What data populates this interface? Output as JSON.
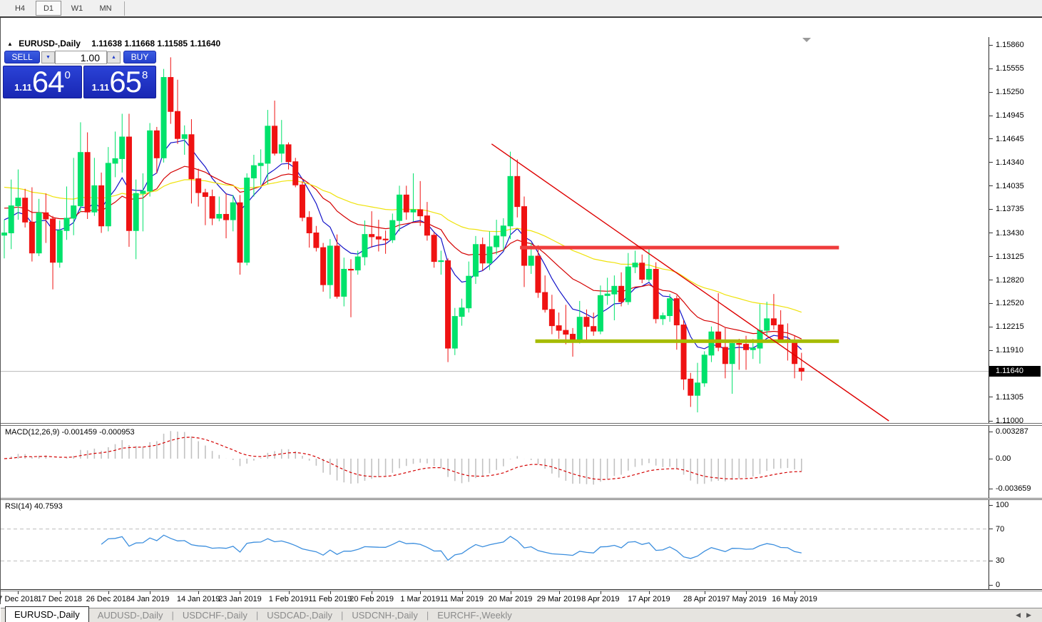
{
  "toolbar": {
    "timeframes": [
      {
        "label": "H4",
        "active": false
      },
      {
        "label": "D1",
        "active": true
      },
      {
        "label": "W1",
        "active": false
      },
      {
        "label": "MN",
        "active": false
      }
    ]
  },
  "header": {
    "symbol": "EURUSD-,Daily",
    "quote": "1.11638 1.11668 1.11585 1.11640"
  },
  "trade": {
    "sell_label": "SELL",
    "buy_label": "BUY",
    "volume": "1.00",
    "sell_price": {
      "prefix": "1.11",
      "big": "64",
      "sup": "0"
    },
    "buy_price": {
      "prefix": "1.11",
      "big": "65",
      "sup": "8"
    }
  },
  "price_scale": {
    "ticks": [
      "1.15860",
      "1.15555",
      "1.15250",
      "1.14945",
      "1.14645",
      "1.14340",
      "1.14035",
      "1.13735",
      "1.13430",
      "1.13125",
      "1.12820",
      "1.12520",
      "1.12215",
      "1.11910",
      "1.11305",
      "1.11000"
    ],
    "current_label": "1.11640",
    "current_value": 1.1164
  },
  "macd": {
    "name": "MACD(12,26,9)",
    "values": "-0.001459 -0.000953",
    "fast": 12,
    "slow": 26,
    "signal": 9,
    "histogram_color": "#C2C2C2",
    "signal_color": "#D40000",
    "scale": [
      {
        "label": "0.003287",
        "value": 0.003287
      },
      {
        "label": "0.00",
        "value": 0
      },
      {
        "label": "-0.003659",
        "value": -0.003659
      }
    ]
  },
  "rsi": {
    "name": "RSI(14)",
    "value": "40.7593",
    "period": 14,
    "line_color": "#3B8EDE",
    "levels": [
      70,
      30
    ],
    "scale": [
      {
        "label": "100",
        "value": 100
      },
      {
        "label": "70",
        "value": 70
      },
      {
        "label": "30",
        "value": 30
      },
      {
        "label": "0",
        "value": 0
      }
    ]
  },
  "tabs": {
    "items": [
      {
        "label": "EURUSD-,Daily",
        "active": true
      },
      {
        "label": "AUDUSD-,Daily",
        "active": false
      },
      {
        "label": "USDCHF-,Daily",
        "active": false
      },
      {
        "label": "USDCAD-,Daily",
        "active": false
      },
      {
        "label": "USDCNH-,Daily",
        "active": false
      },
      {
        "label": "EURCHF-,Weekly",
        "active": false
      }
    ],
    "scroll_left_icon": "◀",
    "scroll_right_icon": "▶"
  },
  "chart_data": {
    "type": "candlestick",
    "symbol": "EURUSD",
    "timeframe": "Daily",
    "up_color": "#00E26B",
    "down_color": "#EF1212",
    "current_price_line_color": "#B8B8B8",
    "y_axis": {
      "min": 1.1098,
      "max": 1.1594
    },
    "x_axis_labels": [
      {
        "label": "7 Dec 2018",
        "index": 2
      },
      {
        "label": "17 Dec 2018",
        "index": 8
      },
      {
        "label": "26 Dec 2018",
        "index": 15
      },
      {
        "label": "4 Jan 2019",
        "index": 21
      },
      {
        "label": "14 Jan 2019",
        "index": 28
      },
      {
        "label": "23 Jan 2019",
        "index": 34
      },
      {
        "label": "1 Feb 2019",
        "index": 41
      },
      {
        "label": "11 Feb 2019",
        "index": 47
      },
      {
        "label": "20 Feb 2019",
        "index": 53
      },
      {
        "label": "1 Mar 2019",
        "index": 60
      },
      {
        "label": "11 Mar 2019",
        "index": 66
      },
      {
        "label": "20 Mar 2019",
        "index": 73
      },
      {
        "label": "29 Mar 2019",
        "index": 80
      },
      {
        "label": "8 Apr 2019",
        "index": 86
      },
      {
        "label": "17 Apr 2019",
        "index": 93
      },
      {
        "label": "28 Apr 2019",
        "index": 101
      },
      {
        "label": "7 May 2019",
        "index": 107
      },
      {
        "label": "16 May 2019",
        "index": 114
      }
    ],
    "moving_averages": [
      {
        "name": "fast",
        "period": 8,
        "seed": 1.136,
        "color": "#1212C8"
      },
      {
        "name": "medium",
        "period": 21,
        "seed": 1.1375,
        "color": "#D40000"
      },
      {
        "name": "slow",
        "period": 50,
        "seed": 1.1402,
        "color": "#EFE20A"
      }
    ],
    "overlays": {
      "trendline": {
        "color": "#DE0000",
        "from_index": 70.3,
        "from_price": 1.1458,
        "to_index": 127.6,
        "to_price": 1.11
      },
      "resistance_band": {
        "color": "#EF3C3C",
        "price": 1.1324,
        "from_index": 74.4,
        "to_index": 120.4,
        "thickness": 5
      },
      "support_band": {
        "color": "#A6BC00",
        "price": 1.1203,
        "from_index": 76.6,
        "to_index": 120.4,
        "thickness": 5
      }
    },
    "candles": [
      [
        1.134,
        1.136,
        1.131,
        1.1343
      ],
      [
        1.1343,
        1.1412,
        1.1322,
        1.1378
      ],
      [
        1.1378,
        1.1425,
        1.136,
        1.1388
      ],
      [
        1.1388,
        1.14,
        1.135,
        1.1357
      ],
      [
        1.1357,
        1.1402,
        1.1306,
        1.1317
      ],
      [
        1.1317,
        1.1387,
        1.1313,
        1.1369
      ],
      [
        1.1369,
        1.1394,
        1.133,
        1.1361
      ],
      [
        1.1361,
        1.1365,
        1.127,
        1.1305
      ],
      [
        1.1305,
        1.1359,
        1.1298,
        1.1346
      ],
      [
        1.1346,
        1.1403,
        1.1334,
        1.1362
      ],
      [
        1.1362,
        1.144,
        1.134,
        1.1378
      ],
      [
        1.1378,
        1.1486,
        1.137,
        1.1447
      ],
      [
        1.1447,
        1.1473,
        1.1361,
        1.137
      ],
      [
        1.137,
        1.144,
        1.1365,
        1.1404
      ],
      [
        1.1404,
        1.1421,
        1.1343,
        1.1352
      ],
      [
        1.1352,
        1.1454,
        1.1345,
        1.1433
      ],
      [
        1.1433,
        1.1474,
        1.1415,
        1.1439
      ],
      [
        1.1439,
        1.1497,
        1.1421,
        1.1467
      ],
      [
        1.1467,
        1.1497,
        1.1325,
        1.1346
      ],
      [
        1.1346,
        1.1412,
        1.1309,
        1.1394
      ],
      [
        1.1394,
        1.142,
        1.1345,
        1.1397
      ],
      [
        1.1397,
        1.1485,
        1.139,
        1.1475
      ],
      [
        1.1475,
        1.148,
        1.142,
        1.144
      ],
      [
        1.144,
        1.1555,
        1.1434,
        1.1544
      ],
      [
        1.1544,
        1.157,
        1.1484,
        1.15
      ],
      [
        1.15,
        1.1541,
        1.1458,
        1.1465
      ],
      [
        1.1465,
        1.1482,
        1.1444,
        1.147
      ],
      [
        1.147,
        1.149,
        1.1381,
        1.1413
      ],
      [
        1.1413,
        1.1426,
        1.1377,
        1.1395
      ],
      [
        1.1395,
        1.14,
        1.1353,
        1.139
      ],
      [
        1.139,
        1.1399,
        1.1353,
        1.1362
      ],
      [
        1.1362,
        1.139,
        1.1358,
        1.1367
      ],
      [
        1.1367,
        1.1394,
        1.1336,
        1.136
      ],
      [
        1.136,
        1.1392,
        1.1345,
        1.1382
      ],
      [
        1.1382,
        1.1392,
        1.1289,
        1.1305
      ],
      [
        1.1305,
        1.142,
        1.1301,
        1.1414
      ],
      [
        1.1414,
        1.1444,
        1.139,
        1.143
      ],
      [
        1.143,
        1.1451,
        1.1405,
        1.1433
      ],
      [
        1.1433,
        1.1502,
        1.1406,
        1.1481
      ],
      [
        1.1481,
        1.1514,
        1.1443,
        1.1446
      ],
      [
        1.1446,
        1.1489,
        1.1434,
        1.1457
      ],
      [
        1.1457,
        1.146,
        1.1425,
        1.1435
      ],
      [
        1.1435,
        1.144,
        1.1402,
        1.1405
      ],
      [
        1.1405,
        1.141,
        1.1358,
        1.1363
      ],
      [
        1.1363,
        1.1371,
        1.1324,
        1.1343
      ],
      [
        1.1343,
        1.1352,
        1.1319,
        1.1324
      ],
      [
        1.1324,
        1.133,
        1.1267,
        1.1276
      ],
      [
        1.1276,
        1.1335,
        1.1258,
        1.1326
      ],
      [
        1.1326,
        1.1341,
        1.1258,
        1.1261
      ],
      [
        1.1261,
        1.1311,
        1.1248,
        1.1296
      ],
      [
        1.1296,
        1.1309,
        1.1234,
        1.1295
      ],
      [
        1.1295,
        1.132,
        1.1289,
        1.1312
      ],
      [
        1.1312,
        1.1359,
        1.1301,
        1.1341
      ],
      [
        1.1341,
        1.1371,
        1.1324,
        1.1338
      ],
      [
        1.1338,
        1.136,
        1.1319,
        1.1335
      ],
      [
        1.1335,
        1.1346,
        1.1316,
        1.1334
      ],
      [
        1.1334,
        1.1368,
        1.133,
        1.1359
      ],
      [
        1.1359,
        1.1404,
        1.1345,
        1.1392
      ],
      [
        1.1392,
        1.1404,
        1.136,
        1.137
      ],
      [
        1.137,
        1.142,
        1.1358,
        1.1373
      ],
      [
        1.1373,
        1.141,
        1.1352,
        1.1365
      ],
      [
        1.1365,
        1.1383,
        1.1333,
        1.134
      ],
      [
        1.134,
        1.1344,
        1.1298,
        1.1306
      ],
      [
        1.1306,
        1.132,
        1.1289,
        1.1307
      ],
      [
        1.1307,
        1.131,
        1.1176,
        1.1194
      ],
      [
        1.1194,
        1.1246,
        1.1185,
        1.1235
      ],
      [
        1.1235,
        1.1258,
        1.1223,
        1.1246
      ],
      [
        1.1246,
        1.1306,
        1.124,
        1.1287
      ],
      [
        1.1287,
        1.1339,
        1.1277,
        1.1328
      ],
      [
        1.1328,
        1.1337,
        1.1294,
        1.1304
      ],
      [
        1.1304,
        1.1345,
        1.1295,
        1.1325
      ],
      [
        1.1325,
        1.136,
        1.1315,
        1.1339
      ],
      [
        1.1339,
        1.1362,
        1.132,
        1.1352
      ],
      [
        1.1352,
        1.1448,
        1.1335,
        1.1416
      ],
      [
        1.1416,
        1.1438,
        1.1363,
        1.1377
      ],
      [
        1.1377,
        1.139,
        1.1273,
        1.1301
      ],
      [
        1.1301,
        1.133,
        1.129,
        1.1313
      ],
      [
        1.1313,
        1.1327,
        1.1259,
        1.1266
      ],
      [
        1.1266,
        1.1288,
        1.124,
        1.1244
      ],
      [
        1.1244,
        1.1263,
        1.1212,
        1.1223
      ],
      [
        1.1223,
        1.124,
        1.1206,
        1.1217
      ],
      [
        1.1217,
        1.125,
        1.1199,
        1.1212
      ],
      [
        1.1212,
        1.122,
        1.1183,
        1.1203
      ],
      [
        1.1203,
        1.1255,
        1.12,
        1.1234
      ],
      [
        1.1234,
        1.1244,
        1.1205,
        1.1222
      ],
      [
        1.1222,
        1.124,
        1.121,
        1.1216
      ],
      [
        1.1216,
        1.1275,
        1.1212,
        1.1262
      ],
      [
        1.1262,
        1.1285,
        1.125,
        1.1264
      ],
      [
        1.1264,
        1.1288,
        1.123,
        1.1274
      ],
      [
        1.1274,
        1.1292,
        1.1248,
        1.1254
      ],
      [
        1.1254,
        1.1317,
        1.125,
        1.1299
      ],
      [
        1.1299,
        1.132,
        1.1291,
        1.1304
      ],
      [
        1.1304,
        1.1315,
        1.1278,
        1.1283
      ],
      [
        1.1283,
        1.1324,
        1.128,
        1.1296
      ],
      [
        1.1296,
        1.1305,
        1.1226,
        1.1232
      ],
      [
        1.1232,
        1.124,
        1.1224,
        1.1236
      ],
      [
        1.1236,
        1.1264,
        1.1228,
        1.1258
      ],
      [
        1.1258,
        1.1262,
        1.1192,
        1.1224
      ],
      [
        1.1224,
        1.123,
        1.114,
        1.1154
      ],
      [
        1.1154,
        1.1162,
        1.1118,
        1.1133
      ],
      [
        1.1133,
        1.1175,
        1.1111,
        1.1149
      ],
      [
        1.1149,
        1.119,
        1.1144,
        1.1185
      ],
      [
        1.1185,
        1.1222,
        1.1176,
        1.1215
      ],
      [
        1.1215,
        1.1265,
        1.119,
        1.1195
      ],
      [
        1.1195,
        1.122,
        1.1155,
        1.1174
      ],
      [
        1.1174,
        1.1205,
        1.1135,
        1.12
      ],
      [
        1.12,
        1.1206,
        1.1166,
        1.1199
      ],
      [
        1.1199,
        1.121,
        1.1166,
        1.1192
      ],
      [
        1.1192,
        1.1206,
        1.118,
        1.1194
      ],
      [
        1.1194,
        1.1251,
        1.1174,
        1.1217
      ],
      [
        1.1217,
        1.1254,
        1.121,
        1.1232
      ],
      [
        1.1232,
        1.1264,
        1.1218,
        1.1224
      ],
      [
        1.1224,
        1.1243,
        1.1202,
        1.1205
      ],
      [
        1.1205,
        1.1226,
        1.1178,
        1.1203
      ],
      [
        1.1203,
        1.121,
        1.1155,
        1.1174
      ],
      [
        1.1168,
        1.1188,
        1.1152,
        1.1164
      ]
    ]
  }
}
